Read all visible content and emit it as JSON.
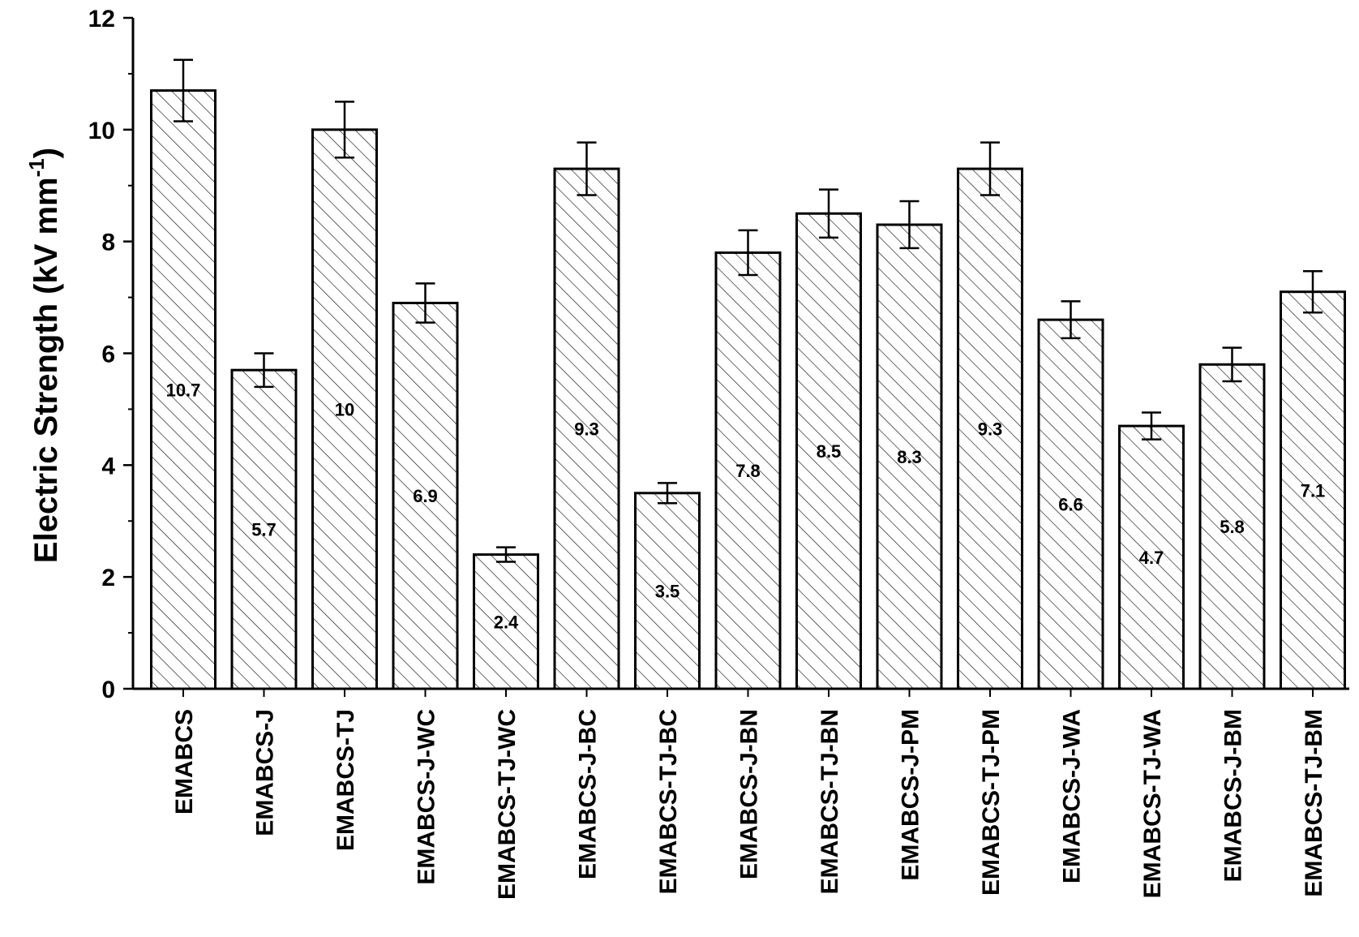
{
  "chart_data": {
    "type": "bar",
    "ylabel": "Electric Strength (kV mm",
    "ylabel_superscript": "-1",
    "ylabel_close": ")",
    "xlabel": "",
    "ylim": [
      0,
      12
    ],
    "yticks": [
      0,
      2,
      4,
      6,
      8,
      10,
      12
    ],
    "grid": false,
    "legend": "none",
    "bar_fill": "hatched",
    "categories": [
      "EMABCS",
      "EMABCS-J",
      "EMABCS-TJ",
      "EMABCS-J-WC",
      "EMABCS-TJ-WC",
      "EMABCS-J-BC",
      "EMABCS-TJ-BC",
      "EMABCS-J-BN",
      "EMABCS-TJ-BN",
      "EMABCS-J-PM",
      "EMABCS-TJ-PM",
      "EMABCS-J-WA",
      "EMABCS-TJ-WA",
      "EMABCS-J-BM",
      "EMABCS-TJ-BM"
    ],
    "values": [
      10.7,
      5.7,
      10,
      6.9,
      2.4,
      9.3,
      3.5,
      7.8,
      8.5,
      8.3,
      9.3,
      6.6,
      4.7,
      5.8,
      7.1
    ],
    "value_labels": [
      "10.7",
      "5.7",
      "10",
      "6.9",
      "2.4",
      "9.3",
      "3.5",
      "7.8",
      "8.5",
      "8.3",
      "9.3",
      "6.6",
      "4.7",
      "5.8",
      "7.1"
    ],
    "errors": [
      0.55,
      0.3,
      0.5,
      0.35,
      0.13,
      0.47,
      0.18,
      0.4,
      0.43,
      0.42,
      0.47,
      0.33,
      0.24,
      0.3,
      0.37
    ],
    "colors": {
      "bar_stroke": "#000000",
      "bar_fill": "#ffffff",
      "hatch": "#000000"
    }
  }
}
